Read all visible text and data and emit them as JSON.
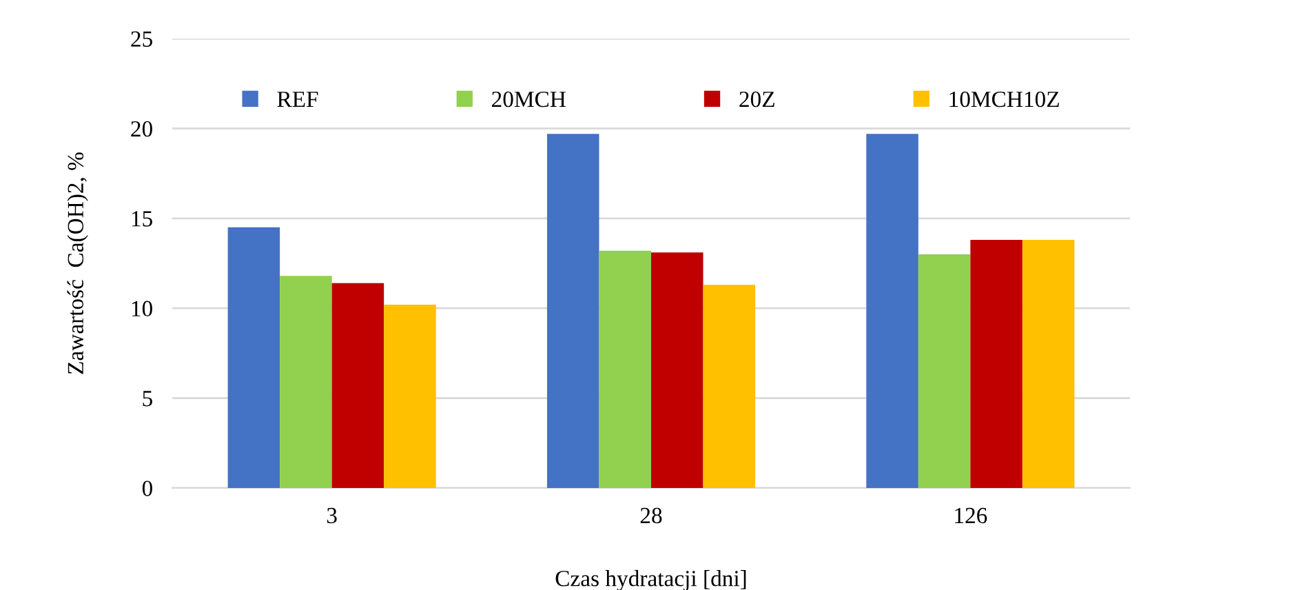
{
  "chart_data": {
    "type": "bar",
    "xlabel": "Czas hydratacji [dni]",
    "ylabel": "Zawartość  Ca(OH)2, %",
    "categories": [
      "3",
      "28",
      "126"
    ],
    "series": [
      {
        "name": "REF",
        "color": "#4472c4",
        "values": [
          14.5,
          19.7,
          19.7
        ]
      },
      {
        "name": "20MCH",
        "color": "#92d050",
        "values": [
          11.8,
          13.2,
          13.0
        ]
      },
      {
        "name": "20Z",
        "color": "#c00000",
        "values": [
          11.4,
          13.1,
          13.8
        ]
      },
      {
        "name": "10MCH10Z",
        "color": "#ffc000",
        "values": [
          10.2,
          11.3,
          13.8
        ]
      }
    ],
    "ylim": [
      0,
      25
    ],
    "yticks": [
      0,
      5,
      10,
      15,
      20,
      25
    ],
    "grid": "y",
    "legend": "top"
  }
}
